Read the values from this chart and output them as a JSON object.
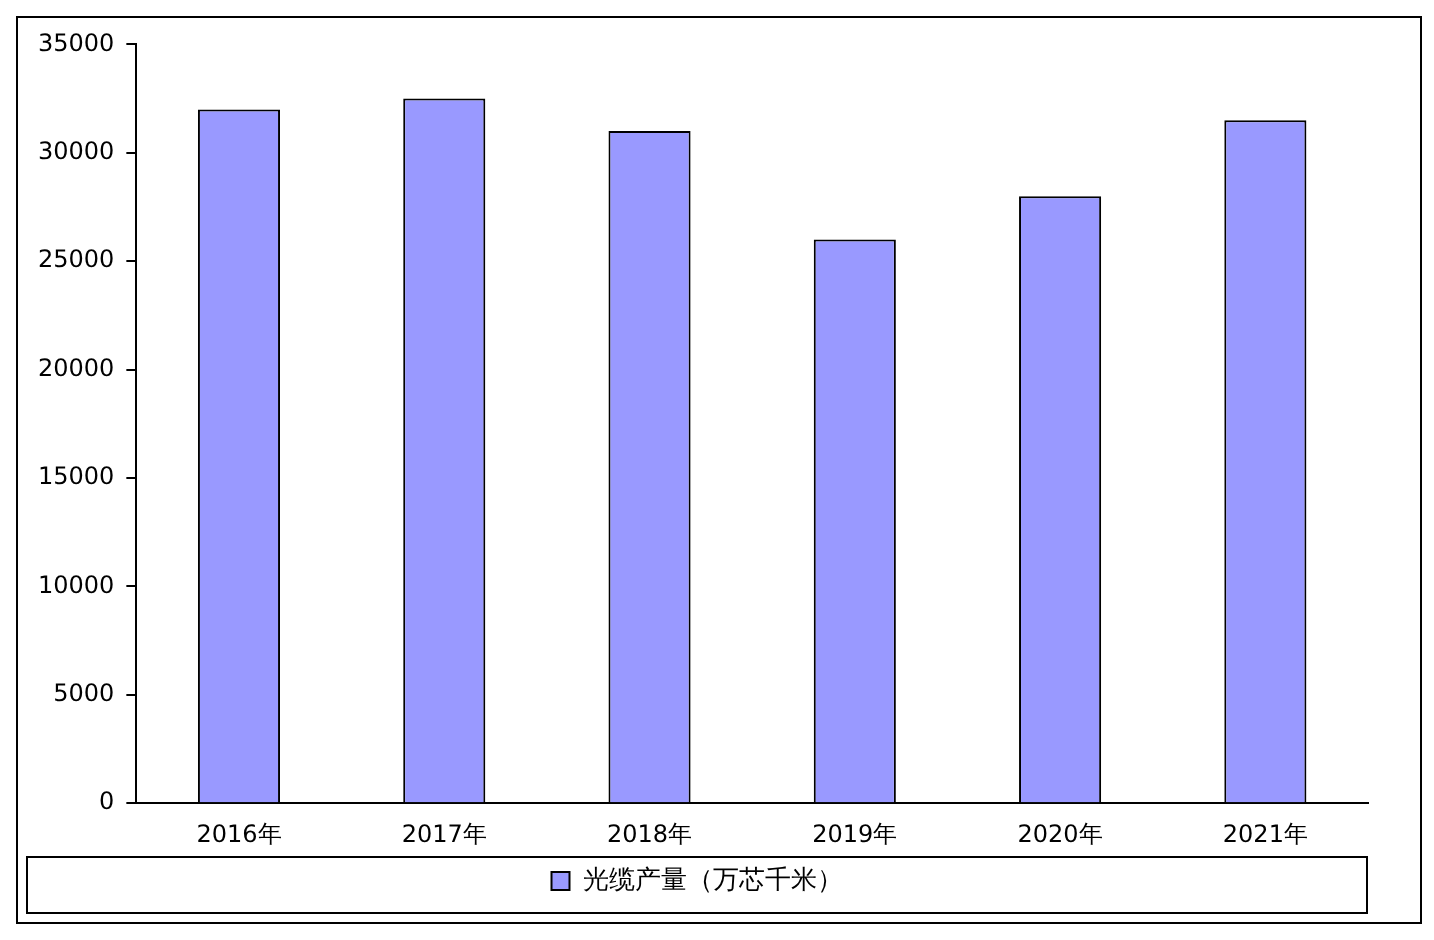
{
  "chart_data": {
    "type": "bar",
    "categories": [
      "2016年",
      "2017年",
      "2018年",
      "2019年",
      "2020年",
      "2021年"
    ],
    "series": [
      {
        "name": "光缆产量（万芯千米）",
        "color": "#9999ff",
        "values": [
          32000,
          32500,
          31000,
          26000,
          28000,
          31500
        ]
      }
    ],
    "ylim": [
      0,
      35000
    ],
    "yticks": [
      0,
      5000,
      10000,
      15000,
      20000,
      25000,
      30000,
      35000
    ],
    "grid": false,
    "legend": "bottom"
  }
}
